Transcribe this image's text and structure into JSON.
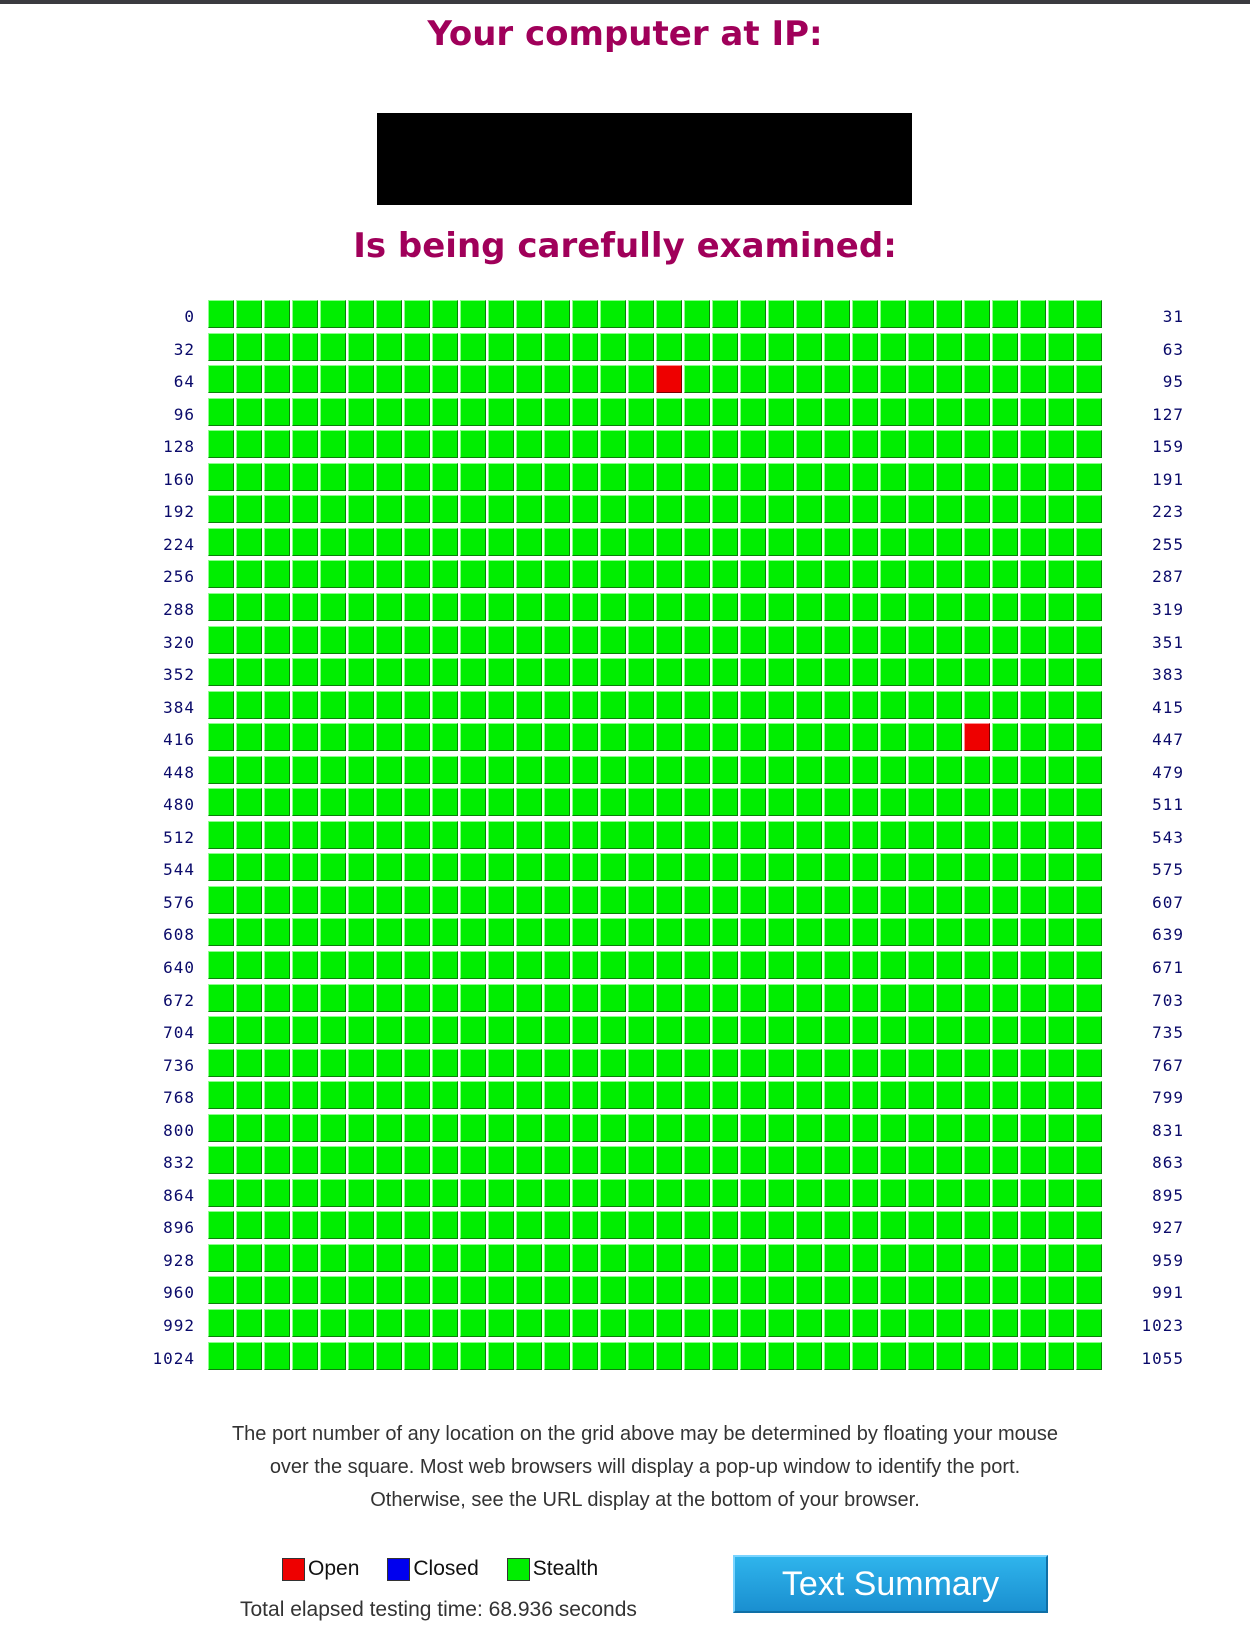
{
  "header": {
    "ip_heading": "Your computer at IP:",
    "ip_value": "",
    "exam_heading": "Is being carefully examined:"
  },
  "grid": {
    "start_port": 0,
    "end_port": 1055,
    "ports_per_row": 32,
    "row_start_labels": [
      "0",
      "32",
      "64",
      "96",
      "128",
      "160",
      "192",
      "224",
      "256",
      "288",
      "320",
      "352",
      "384",
      "416",
      "448",
      "480",
      "512",
      "544",
      "576",
      "608",
      "640",
      "672",
      "704",
      "736",
      "768",
      "800",
      "832",
      "864",
      "896",
      "928",
      "960",
      "992",
      "1024"
    ],
    "row_end_labels": [
      "31",
      "63",
      "95",
      "127",
      "159",
      "191",
      "223",
      "255",
      "287",
      "319",
      "351",
      "383",
      "415",
      "447",
      "479",
      "511",
      "543",
      "575",
      "607",
      "639",
      "671",
      "703",
      "735",
      "767",
      "799",
      "831",
      "863",
      "895",
      "927",
      "959",
      "991",
      "1023",
      "1055"
    ],
    "default_status": "stealth",
    "open_ports": [
      80,
      443
    ],
    "closed_ports": []
  },
  "explanation": "The port number of any location on the grid above may be determined by floating your mouse over the square. Most web browsers will display a pop-up window to identify the port. Otherwise, see the URL display at the bottom of your browser.",
  "legend": {
    "open_label": "Open",
    "closed_label": "Closed",
    "stealth_label": "Stealth",
    "open_color": "#ee0000",
    "closed_color": "#0000ee",
    "stealth_color": "#00ee00"
  },
  "elapsed_text": "Total elapsed testing time: 68.936 seconds",
  "summary_button_label": "Text Summary",
  "colors": {
    "heading": "#a0005a",
    "label": "#0a0a6a"
  }
}
